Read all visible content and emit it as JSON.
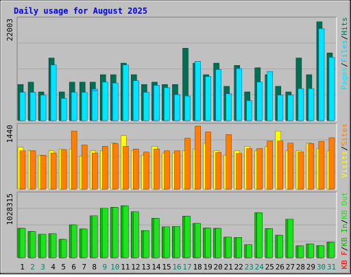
{
  "title": "Daily usage for August 2025",
  "colors": {
    "frame_bg": "#c0c0c0",
    "title": "#0000ff",
    "hits": "#006e54",
    "files": "#00d0ff",
    "pages": "#00e6ff",
    "visits": "#ffff00",
    "sites": "#ff8000",
    "kb_in": "#00c000",
    "kb_out": "#20e020",
    "kb_f": "#ff0000",
    "day_weekday": "#000000",
    "day_weekend": "#00806c"
  },
  "legends": {
    "top": [
      "Pages",
      "/",
      "Files",
      "/",
      "Hits"
    ],
    "middle": [
      "Visits",
      "/",
      "Sites"
    ],
    "bottom": [
      "KB F",
      "/",
      "KB In",
      "/",
      "KB Out"
    ]
  },
  "chart_data": [
    {
      "type": "bar",
      "title": "Daily usage for August 2025",
      "panel": "hits-files-pages",
      "categories": [
        "1",
        "2",
        "3",
        "4",
        "5",
        "6",
        "7",
        "8",
        "9",
        "10",
        "11",
        "12",
        "13",
        "14",
        "15",
        "16",
        "17",
        "18",
        "19",
        "20",
        "21",
        "22",
        "23",
        "24",
        "25",
        "26",
        "27",
        "28",
        "29",
        "30",
        "31"
      ],
      "ymax_label": "22003",
      "ylim": [
        0,
        22003
      ],
      "series": [
        {
          "name": "Hits",
          "values": [
            7800,
            8300,
            6200,
            13500,
            6200,
            8300,
            8300,
            8300,
            9900,
            9900,
            12400,
            9900,
            7800,
            8300,
            7800,
            7800,
            15600,
            12400,
            9900,
            12400,
            7400,
            11900,
            6200,
            11400,
            9900,
            7400,
            6200,
            13500,
            9900,
            21300,
            14600
          ]
        },
        {
          "name": "Files",
          "values": [
            6100,
            6100,
            5500,
            12000,
            4800,
            6100,
            6100,
            6800,
            8300,
            8100,
            12000,
            8600,
            6100,
            7600,
            7100,
            5600,
            5300,
            12800,
            9500,
            11000,
            5800,
            11200,
            4300,
            8300,
            10600,
            5500,
            5500,
            6900,
            6900,
            19800,
            13600
          ]
        },
        {
          "name": "Pages",
          "values": [
            6100,
            6100,
            5500,
            12000,
            4800,
            6100,
            6100,
            6400,
            8300,
            8100,
            12000,
            8600,
            6100,
            7600,
            7100,
            5600,
            5300,
            12800,
            9500,
            11000,
            5800,
            11200,
            4300,
            8300,
            10600,
            5500,
            5500,
            6900,
            6900,
            19800,
            13600
          ]
        }
      ]
    },
    {
      "type": "bar",
      "panel": "visits-sites",
      "categories": [
        "1",
        "2",
        "3",
        "4",
        "5",
        "6",
        "7",
        "8",
        "9",
        "10",
        "11",
        "12",
        "13",
        "14",
        "15",
        "16",
        "17",
        "18",
        "19",
        "20",
        "21",
        "22",
        "23",
        "24",
        "25",
        "26",
        "27",
        "28",
        "29",
        "30",
        "31"
      ],
      "ymax_label": "1440",
      "ylim": [
        0,
        1440
      ],
      "series": [
        {
          "name": "Visits",
          "values": [
            940,
            860,
            760,
            860,
            900,
            900,
            740,
            860,
            860,
            1030,
            1200,
            860,
            760,
            960,
            810,
            810,
            860,
            900,
            1030,
            860,
            760,
            860,
            960,
            860,
            960,
            1300,
            860,
            860,
            1030,
            910,
            860
          ]
        },
        {
          "name": "Sites",
          "values": [
            860,
            860,
            760,
            810,
            880,
            1300,
            990,
            810,
            960,
            1020,
            960,
            900,
            830,
            900,
            860,
            860,
            1140,
            1410,
            1280,
            820,
            1220,
            800,
            910,
            910,
            1080,
            1080,
            1030,
            830,
            1020,
            1070,
            1150
          ]
        }
      ]
    },
    {
      "type": "bar",
      "panel": "kb",
      "categories": [
        "1",
        "2",
        "3",
        "4",
        "5",
        "6",
        "7",
        "8",
        "9",
        "10",
        "11",
        "12",
        "13",
        "14",
        "15",
        "16",
        "17",
        "18",
        "19",
        "20",
        "21",
        "22",
        "23",
        "24",
        "25",
        "26",
        "27",
        "28",
        "29",
        "30",
        "31"
      ],
      "ymax_label": "1028315",
      "ylim": [
        0,
        1028315
      ],
      "series": [
        {
          "name": "KB F",
          "values": [
            470000,
            420000,
            375000,
            385000,
            295000,
            525000,
            460000,
            670000,
            790000,
            805000,
            830000,
            735000,
            435000,
            630000,
            495000,
            500000,
            665000,
            550000,
            475000,
            470000,
            330000,
            325000,
            210000,
            720000,
            465000,
            360000,
            615000,
            190000,
            220000,
            195000,
            250000
          ]
        },
        {
          "name": "KB In",
          "values": [
            470000,
            420000,
            375000,
            385000,
            295000,
            525000,
            460000,
            670000,
            790000,
            805000,
            830000,
            735000,
            435000,
            630000,
            495000,
            500000,
            665000,
            550000,
            475000,
            470000,
            330000,
            325000,
            210000,
            720000,
            465000,
            360000,
            615000,
            190000,
            220000,
            195000,
            250000
          ]
        },
        {
          "name": "KB Out",
          "values": [
            470000,
            420000,
            375000,
            385000,
            295000,
            525000,
            460000,
            670000,
            790000,
            805000,
            830000,
            735000,
            435000,
            630000,
            495000,
            500000,
            665000,
            550000,
            475000,
            470000,
            330000,
            325000,
            210000,
            720000,
            465000,
            360000,
            615000,
            190000,
            220000,
            195000,
            250000
          ]
        }
      ]
    }
  ],
  "day_labels": [
    "1",
    "2",
    "3",
    "4",
    "5",
    "6",
    "7",
    "8",
    "9",
    "10",
    "11",
    "12",
    "13",
    "14",
    "15",
    "16",
    "17",
    "18",
    "19",
    "20",
    "21",
    "22",
    "23",
    "24",
    "25",
    "26",
    "27",
    "28",
    "29",
    "30",
    "31"
  ],
  "weekend_days": [
    "2",
    "3",
    "9",
    "10",
    "16",
    "17",
    "23",
    "24",
    "30",
    "31"
  ]
}
